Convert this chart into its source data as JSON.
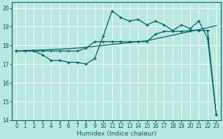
{
  "xlabel": "Humidex (Indice chaleur)",
  "bg_color": "#b8e8e0",
  "grid_color": "#ffffff",
  "line_color": "#006060",
  "xlim": [
    -0.5,
    23.5
  ],
  "ylim": [
    14.0,
    20.3
  ],
  "xticks": [
    0,
    1,
    2,
    3,
    4,
    5,
    6,
    7,
    8,
    9,
    10,
    11,
    12,
    13,
    14,
    15,
    16,
    17,
    18,
    19,
    20,
    21,
    22,
    23
  ],
  "yticks": [
    14,
    15,
    16,
    17,
    18,
    19,
    20
  ],
  "line1_x": [
    0,
    1,
    2,
    3,
    4,
    5,
    6,
    7,
    8,
    9,
    10,
    11,
    12,
    13,
    14,
    15,
    16,
    17,
    18,
    19,
    20,
    21,
    22,
    23
  ],
  "line1_y": [
    17.7,
    17.72,
    17.74,
    17.76,
    17.78,
    17.8,
    17.83,
    17.86,
    17.9,
    17.95,
    18.0,
    18.05,
    18.1,
    18.15,
    18.2,
    18.25,
    18.35,
    18.45,
    18.55,
    18.65,
    18.75,
    18.85,
    18.95,
    19.05
  ],
  "line2_x": [
    0,
    1,
    2,
    3,
    4,
    5,
    6,
    7,
    8,
    9,
    10,
    11,
    12,
    13,
    14,
    15,
    16,
    17,
    18,
    19,
    20,
    21,
    22,
    23
  ],
  "line2_y": [
    17.7,
    17.7,
    17.7,
    17.5,
    17.2,
    17.2,
    17.1,
    17.1,
    17.0,
    17.3,
    18.5,
    19.85,
    19.5,
    19.3,
    19.4,
    19.1,
    19.3,
    19.1,
    18.8,
    19.1,
    18.9,
    19.3,
    18.4,
    14.3
  ],
  "line3_x": [
    0,
    1,
    2,
    3,
    4,
    5,
    6,
    7,
    8,
    9,
    10,
    11,
    12,
    13,
    14,
    15,
    16,
    17,
    18,
    19,
    20,
    21,
    22,
    23
  ],
  "line3_y": [
    17.7,
    17.7,
    17.7,
    17.7,
    17.7,
    17.7,
    17.7,
    17.7,
    17.85,
    18.2,
    18.2,
    18.2,
    18.2,
    18.2,
    18.2,
    18.2,
    18.6,
    18.75,
    18.75,
    18.75,
    18.8,
    18.8,
    18.8,
    14.3
  ],
  "tick_fontsize": 5.5,
  "xlabel_fontsize": 6.5
}
